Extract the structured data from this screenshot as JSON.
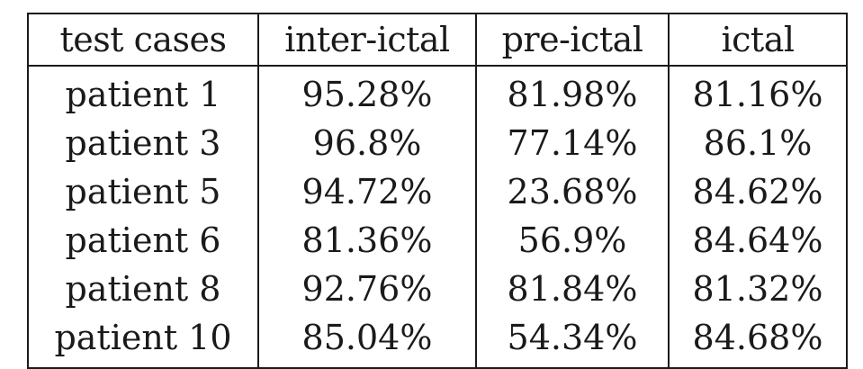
{
  "table": {
    "columns": [
      "test cases",
      "inter-ictal",
      "pre-ictal",
      "ictal"
    ],
    "rows": [
      [
        "patient 1",
        "95.28%",
        "81.98%",
        "81.16%"
      ],
      [
        "patient 3",
        "96.8%",
        "77.14%",
        "86.1%"
      ],
      [
        "patient 5",
        "94.72%",
        "23.68%",
        "84.62%"
      ],
      [
        "patient 6",
        "81.36%",
        "56.9%",
        "84.64%"
      ],
      [
        "patient 8",
        "92.76%",
        "81.84%",
        "81.32%"
      ],
      [
        "patient 10",
        "85.04%",
        "54.34%",
        "84.68%"
      ]
    ]
  }
}
